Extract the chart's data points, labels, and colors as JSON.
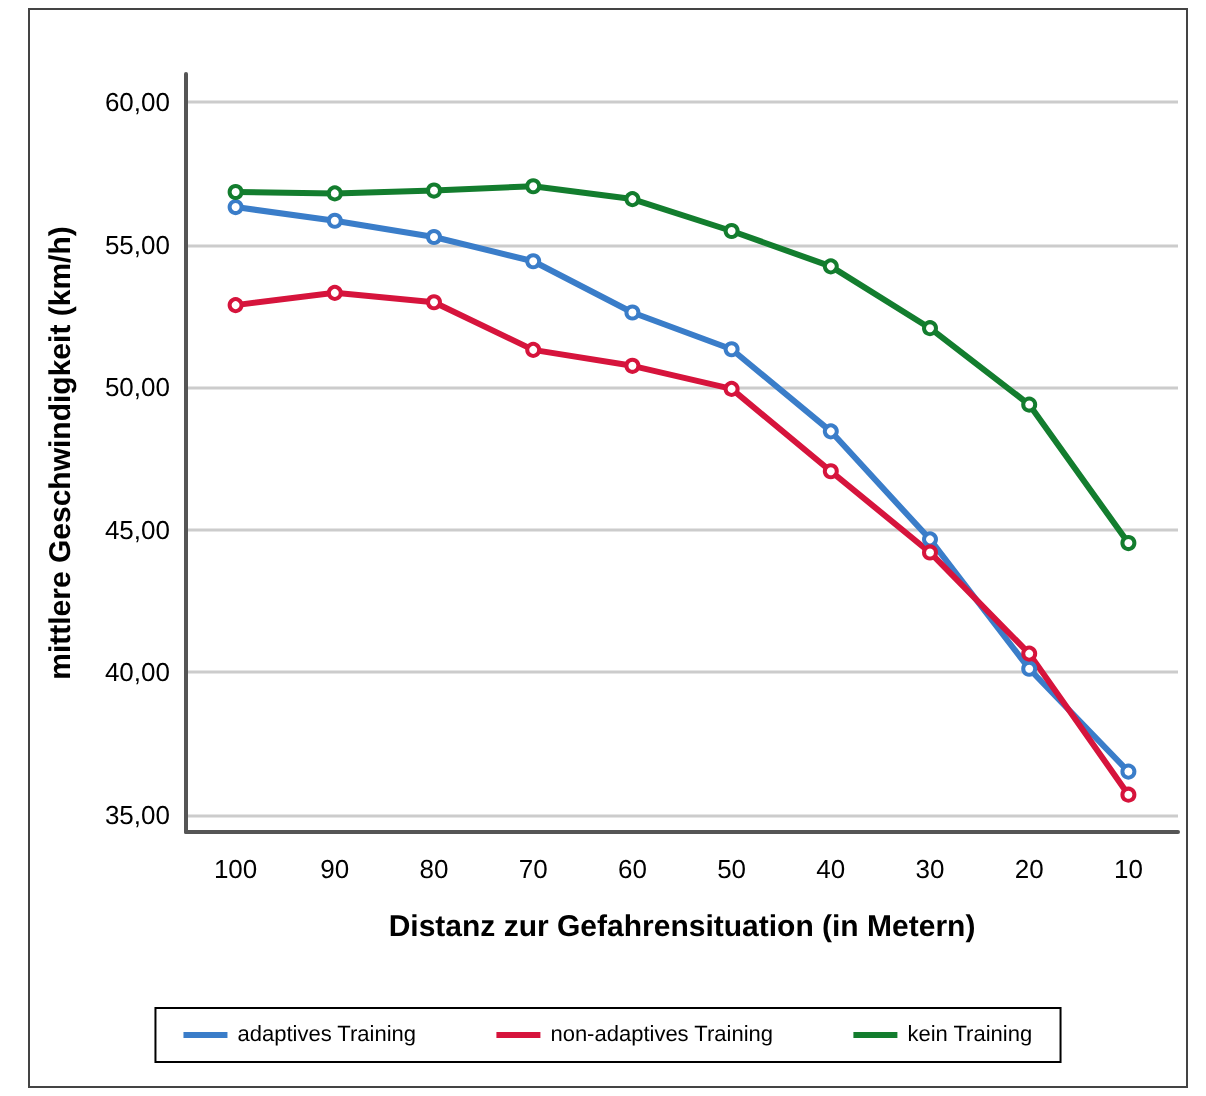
{
  "chart_data": {
    "type": "line",
    "xlabel": "Distanz zur Gefahrensituation (in Metern)",
    "ylabel": "mittlere Geschwindigkeit (km/h)",
    "categories": [
      "100",
      "90",
      "80",
      "70",
      "60",
      "50",
      "40",
      "30",
      "20",
      "10"
    ],
    "series": [
      {
        "name": "adaptives Training",
        "color": "#3a7dc9",
        "values": [
          56.33,
          55.85,
          55.28,
          54.43,
          52.63,
          51.34,
          48.46,
          44.67,
          40.13,
          36.52
        ]
      },
      {
        "name": "non-adaptives Training",
        "color": "#d6143c",
        "values": [
          52.89,
          53.32,
          52.99,
          51.32,
          50.76,
          49.95,
          47.06,
          44.21,
          40.66,
          35.71
        ]
      },
      {
        "name": "kein Training",
        "color": "#137d2e",
        "values": [
          56.86,
          56.81,
          56.91,
          57.06,
          56.61,
          55.49,
          54.25,
          52.08,
          49.4,
          44.54
        ]
      }
    ],
    "ylim": [
      34.4,
      61
    ],
    "yticks": [
      {
        "value": 35,
        "label": "35,00"
      },
      {
        "value": 40,
        "label": "40,00"
      },
      {
        "value": 45,
        "label": "45,00"
      },
      {
        "value": 50,
        "label": "50,00"
      },
      {
        "value": 55,
        "label": "55,00"
      },
      {
        "value": 60,
        "label": "60,00"
      }
    ],
    "grid": "y",
    "legend": "bottom",
    "marker": "circle",
    "line_style": "solid"
  }
}
